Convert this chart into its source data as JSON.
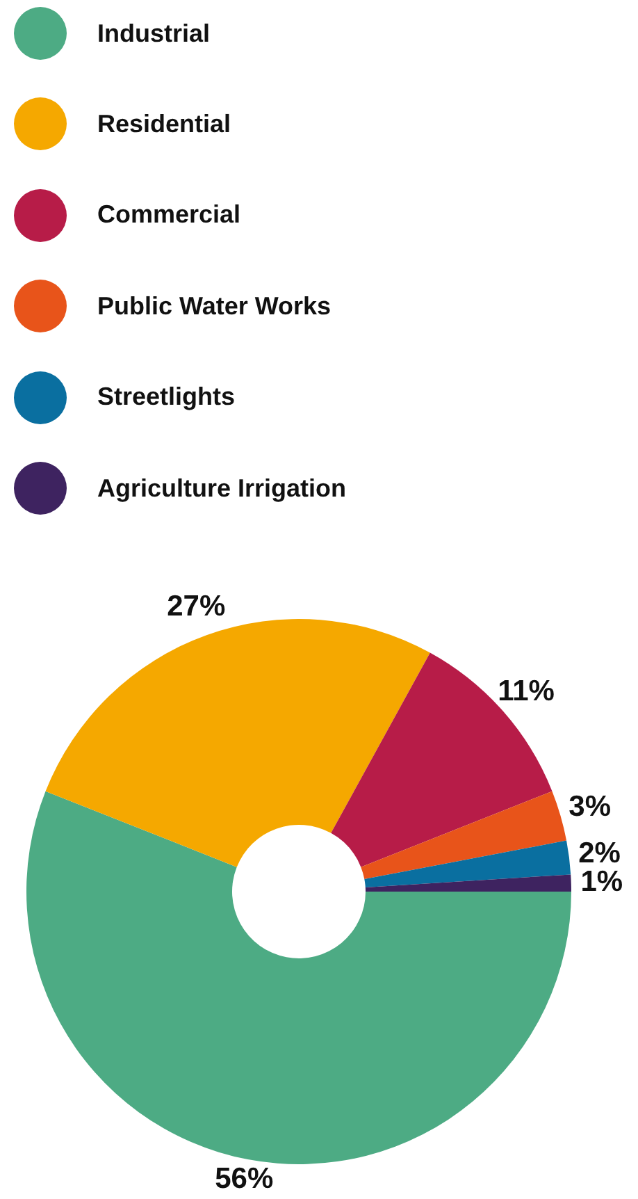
{
  "chart_data": {
    "type": "donut",
    "categories": [
      "Industrial",
      "Residential",
      "Commercial",
      "Public Water Works",
      "Streetlights",
      "Agriculture Irrigation"
    ],
    "values": [
      56,
      27,
      11,
      3,
      2,
      1
    ],
    "colors": [
      "#4dab84",
      "#f5a800",
      "#b71c48",
      "#e8541a",
      "#0a6fa0",
      "#3e2360"
    ],
    "value_labels": [
      "56%",
      "27%",
      "11%",
      "3%",
      "2%",
      "1%"
    ],
    "legend": "top"
  }
}
